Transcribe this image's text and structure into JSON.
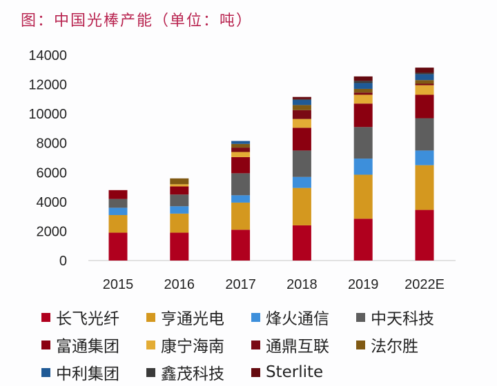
{
  "title": "图：中国光棒产能（单位：吨）",
  "chart_data": {
    "type": "bar",
    "stacked": true,
    "title": "图：中国光棒产能（单位：吨）",
    "xlabel": "",
    "ylabel": "",
    "ylim": [
      0,
      14000
    ],
    "yticks": [
      0,
      2000,
      4000,
      6000,
      8000,
      10000,
      12000,
      14000
    ],
    "grid": false,
    "legend_position": "bottom",
    "categories": [
      "2015",
      "2016",
      "2017",
      "2018",
      "2019",
      "2022E"
    ],
    "series": [
      {
        "name": "长飞光纤",
        "color": "#b0001e",
        "values": [
          1900,
          1900,
          2100,
          2400,
          2850,
          3450
        ]
      },
      {
        "name": "亨通光电",
        "color": "#d4981f",
        "values": [
          1200,
          1300,
          1850,
          2550,
          3000,
          3050
        ]
      },
      {
        "name": "烽火通信",
        "color": "#3d8fdb",
        "values": [
          500,
          500,
          500,
          750,
          1100,
          1000
        ]
      },
      {
        "name": "中天科技",
        "color": "#5e5e5e",
        "values": [
          600,
          800,
          1500,
          1800,
          2150,
          2200
        ]
      },
      {
        "name": "富通集团",
        "color": "#8b0010",
        "values": [
          600,
          550,
          1100,
          1550,
          1600,
          1600
        ]
      },
      {
        "name": "康宁海南",
        "color": "#e3ac35",
        "values": [
          0,
          150,
          350,
          600,
          600,
          650
        ]
      },
      {
        "name": "通鼎互联",
        "color": "#7a0a14",
        "values": [
          0,
          0,
          300,
          600,
          150,
          100
        ]
      },
      {
        "name": "法尔胜",
        "color": "#805a14",
        "values": [
          0,
          400,
          250,
          350,
          250,
          250
        ]
      },
      {
        "name": "中利集团",
        "color": "#1f5a96",
        "values": [
          0,
          0,
          200,
          350,
          400,
          400
        ]
      },
      {
        "name": "鑫茂科技",
        "color": "#3a3a3a",
        "values": [
          0,
          0,
          0,
          50,
          150,
          100
        ]
      },
      {
        "name": "Sterlite",
        "color": "#650a10",
        "values": [
          0,
          0,
          0,
          150,
          300,
          350
        ]
      }
    ]
  }
}
